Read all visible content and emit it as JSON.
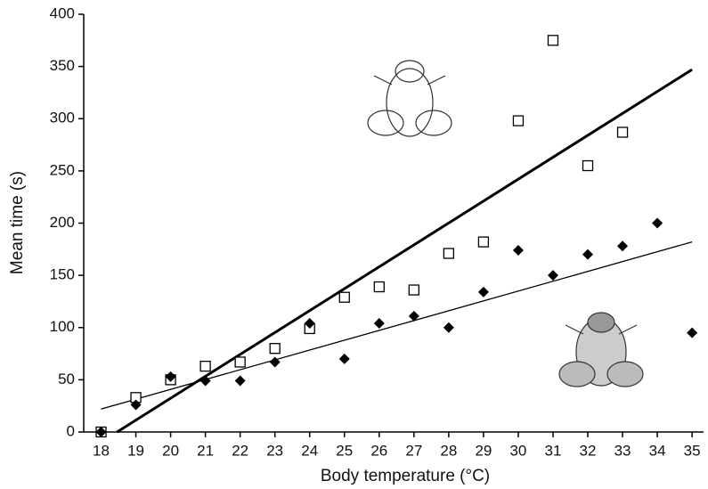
{
  "chart_data": {
    "type": "scatter",
    "x_label": "Body temperature (°C)",
    "y_label": "Mean time (s)",
    "xlim": [
      17.5,
      35.33
    ],
    "ylim": [
      0,
      400
    ],
    "xticks": [
      18,
      19,
      20,
      21,
      22,
      23,
      24,
      25,
      26,
      27,
      28,
      29,
      30,
      31,
      32,
      33,
      34,
      35
    ],
    "yticks": [
      0,
      50,
      100,
      150,
      200,
      250,
      300,
      350,
      400
    ],
    "series": [
      {
        "marker": "square",
        "color": "#000000",
        "x": [
          18,
          19,
          20,
          21,
          22,
          23,
          24,
          25,
          26,
          27,
          28,
          29,
          30,
          31,
          32,
          33
        ],
        "values": [
          0,
          33,
          50,
          63,
          67,
          80,
          99,
          129,
          139,
          136,
          171,
          182,
          298,
          375,
          255,
          287
        ]
      },
      {
        "marker": "diamond",
        "color": "#000000",
        "x": [
          18,
          19,
          20,
          21,
          22,
          23,
          24,
          25,
          26,
          27,
          28,
          29,
          30,
          31,
          32,
          33,
          34,
          35
        ],
        "values": [
          0,
          26,
          53,
          49,
          49,
          67,
          104,
          70,
          104,
          111,
          100,
          134,
          174,
          150,
          170,
          178,
          200,
          95
        ]
      }
    ],
    "trend_lines": [
      {
        "color": "#000000",
        "width": 3,
        "x": [
          18.46,
          35
        ],
        "values": [
          0,
          347
        ]
      },
      {
        "color": "#000000",
        "width": 1.3,
        "x": [
          18,
          35
        ],
        "values": [
          22,
          182
        ]
      }
    ]
  }
}
